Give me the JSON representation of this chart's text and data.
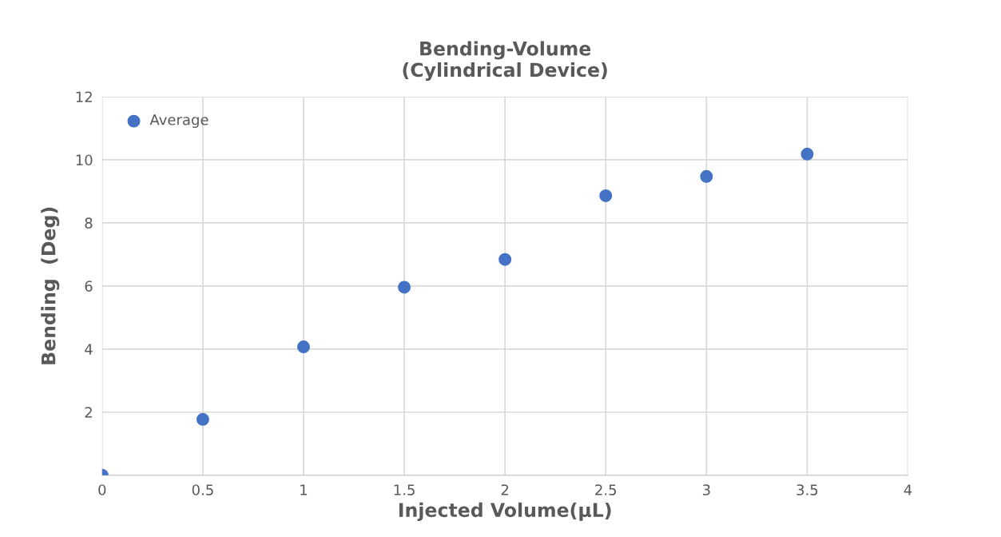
{
  "chart_data": {
    "type": "scatter",
    "title": "Bending-Volume\n(Cylindrical Device)",
    "xlabel": "Injected Volume(µL)",
    "ylabel": "Bending  (Deg)",
    "x": [
      0,
      0.5,
      1,
      1.5,
      2,
      2.5,
      3,
      3.5
    ],
    "series": [
      {
        "name": "Average",
        "color": "#4472c4",
        "values": [
          0,
          1.77,
          4.07,
          5.96,
          6.84,
          8.86,
          9.47,
          10.18
        ]
      }
    ],
    "xlim": [
      0,
      4
    ],
    "xticks": [
      0,
      0.5,
      1,
      1.5,
      2,
      2.5,
      3,
      3.5,
      4
    ],
    "ylim": [
      0,
      12
    ],
    "yticks": [
      {
        "value": 0,
        "label": null
      },
      2,
      4,
      6,
      8,
      10,
      12
    ],
    "grid": true,
    "legend": "top left",
    "marker": "circle"
  }
}
